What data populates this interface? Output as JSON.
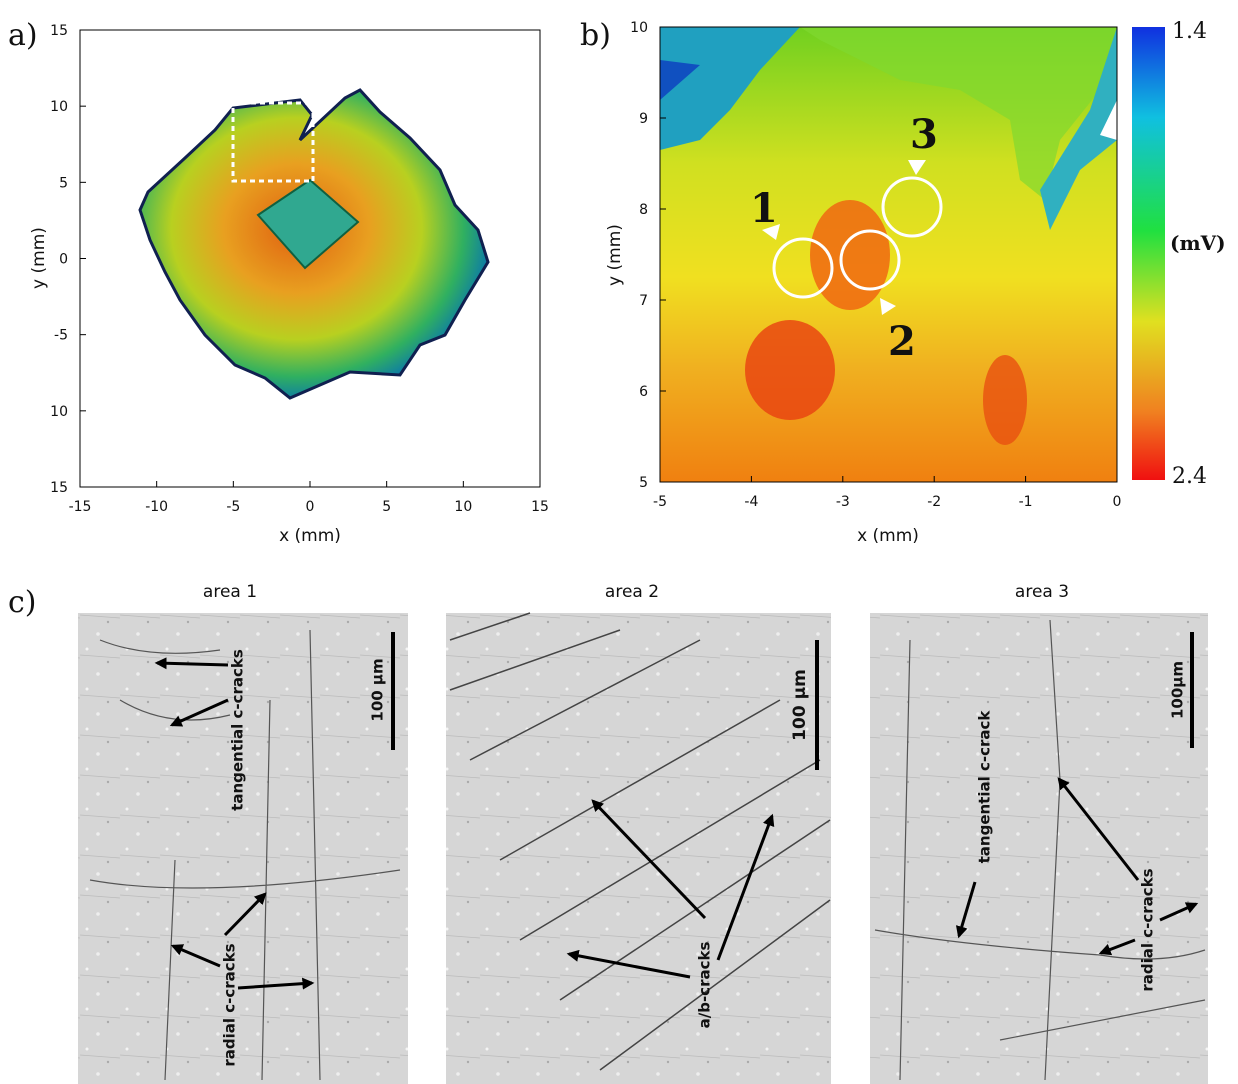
{
  "panels": {
    "a": {
      "label": "a)",
      "x_label": "x (mm)",
      "y_label": "y (mm)",
      "x_ticks": [
        "-15",
        "-10",
        "-5",
        "0",
        "5",
        "10",
        "15"
      ],
      "y_ticks": [
        "15",
        "10",
        "5",
        "0",
        "-5",
        "10",
        "15"
      ]
    },
    "b": {
      "label": "b)",
      "x_label": "x (mm)",
      "y_label": "y (mm)",
      "x_ticks": [
        "-5",
        "-4",
        "-3",
        "-2",
        "-1",
        "0"
      ],
      "y_ticks": [
        "10",
        "9",
        "8",
        "7",
        "6",
        "5"
      ],
      "colorbar": {
        "top": "1.4",
        "unit": "(mV)",
        "bottom": "2.4"
      },
      "markers": [
        "1",
        "2",
        "3"
      ]
    },
    "c": {
      "label": "c)",
      "images": [
        {
          "title": "area 1",
          "scale_bar": "100 µm",
          "annotations": [
            "tangential c-cracks",
            "radial c-cracks"
          ]
        },
        {
          "title": "area 2",
          "scale_bar": "100 µm",
          "annotations": [
            "a/b-cracks"
          ]
        },
        {
          "title": "area 3",
          "scale_bar": "100µm",
          "annotations": [
            "tangential c-crack",
            "radial c-cracks"
          ]
        }
      ]
    }
  }
}
